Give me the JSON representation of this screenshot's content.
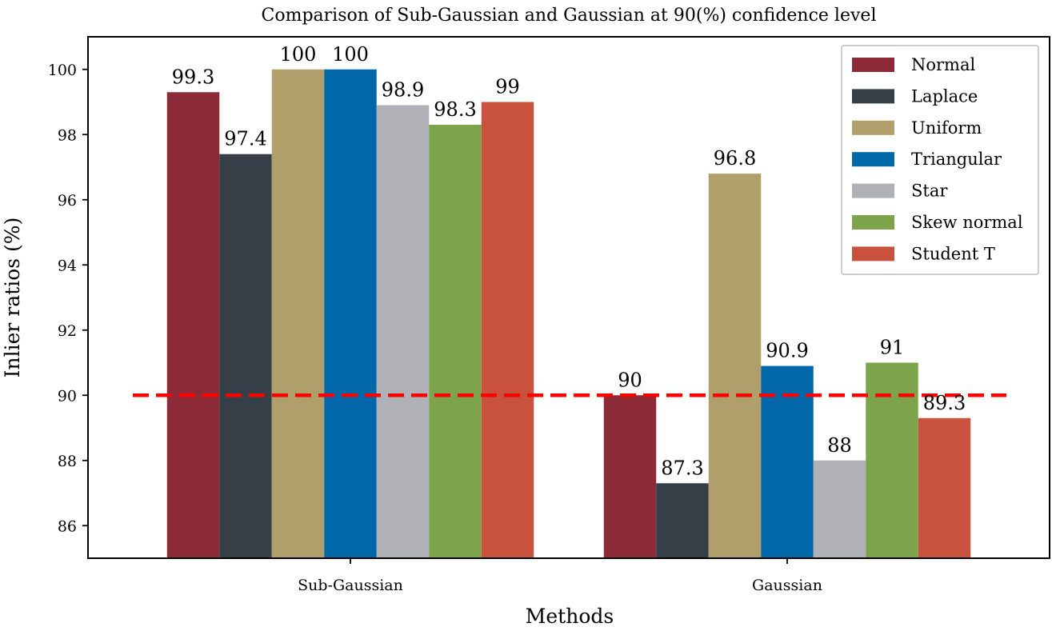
{
  "chart_data": {
    "type": "bar",
    "title": "Comparison of Sub-Gaussian and Gaussian at 90(%) confidence level",
    "xlabel": "Methods",
    "ylabel": "Inlier ratios (%)",
    "categories": [
      "Sub-Gaussian",
      "Gaussian"
    ],
    "ylim": [
      85,
      101
    ],
    "yticks": [
      86,
      88,
      90,
      92,
      94,
      96,
      98,
      100
    ],
    "grid": false,
    "legend_position": "top-right",
    "reference_line": {
      "y": 90,
      "color": "#ff0000",
      "style": "dashed"
    },
    "series": [
      {
        "name": "Normal",
        "color": "#8c2a38",
        "values": [
          99.3,
          90
        ],
        "labels": [
          "99.3",
          "90"
        ]
      },
      {
        "name": "Laplace",
        "color": "#363f48",
        "values": [
          97.4,
          87.3
        ],
        "labels": [
          "97.4",
          "87.3"
        ]
      },
      {
        "name": "Uniform",
        "color": "#b09f6b",
        "values": [
          100,
          96.8
        ],
        "labels": [
          "100",
          "96.8"
        ]
      },
      {
        "name": "Triangular",
        "color": "#0068a8",
        "values": [
          100,
          90.9
        ],
        "labels": [
          "100",
          "90.9"
        ]
      },
      {
        "name": "Star",
        "color": "#afb1b6",
        "values": [
          98.9,
          88
        ],
        "labels": [
          "98.9",
          "88"
        ]
      },
      {
        "name": "Skew normal",
        "color": "#7da44b",
        "values": [
          98.3,
          91
        ],
        "labels": [
          "98.3",
          "91"
        ]
      },
      {
        "name": "Student T",
        "color": "#c9523f",
        "values": [
          99,
          89.3
        ],
        "labels": [
          "99",
          "89.3"
        ]
      }
    ]
  }
}
